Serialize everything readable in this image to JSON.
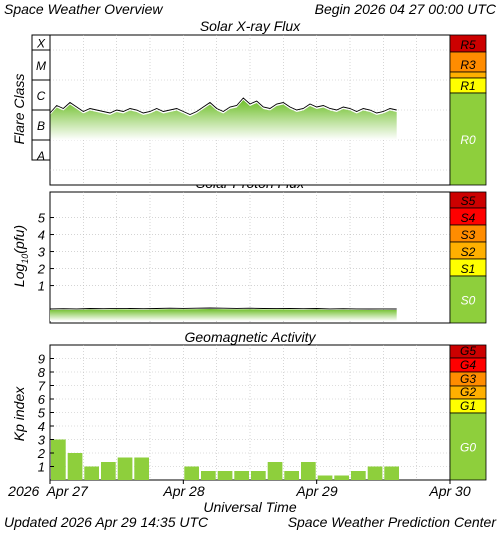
{
  "header": {
    "title": "Space Weather Overview",
    "begin": "Begin 2026 04 27 00:00 UTC"
  },
  "footer": {
    "updated": "Updated 2026 Apr 29 14:35 UTC",
    "center": "Space Weather Prediction Center"
  },
  "colors": {
    "scale_red_dark": "#cc0000",
    "scale_red": "#ff0000",
    "scale_orange": "#ff8c00",
    "scale_amber": "#ffb000",
    "scale_yellow": "#ffff00",
    "scale_green": "#8ecf3c",
    "data_green": "#8ecf3c",
    "grid": "#bbbbbb"
  },
  "chart_data": [
    {
      "id": "xray",
      "type": "area",
      "title": "Solar X-ray Flux",
      "ylabel": "Flare Class",
      "y_classes": [
        "X",
        "M",
        "C",
        "B",
        "A"
      ],
      "ylim": [
        -8.5,
        -3.5
      ],
      "scale_labels": [
        "R5",
        "R3",
        "R1",
        "R0"
      ],
      "time_range_days": [
        0,
        2.6
      ],
      "series_summary": "C-class level, ~-6.0 log W/m2 with peaks near -5.6",
      "x": [
        0.0,
        0.05,
        0.1,
        0.15,
        0.2,
        0.25,
        0.3,
        0.35,
        0.4,
        0.45,
        0.5,
        0.55,
        0.6,
        0.65,
        0.7,
        0.75,
        0.8,
        0.85,
        0.9,
        0.95,
        1.0,
        1.05,
        1.1,
        1.15,
        1.2,
        1.25,
        1.3,
        1.35,
        1.4,
        1.45,
        1.5,
        1.55,
        1.6,
        1.65,
        1.7,
        1.75,
        1.8,
        1.85,
        1.9,
        1.95,
        2.0,
        2.05,
        2.1,
        2.15,
        2.2,
        2.25,
        2.3,
        2.35,
        2.4,
        2.45,
        2.5,
        2.55,
        2.6
      ],
      "values": [
        -6.1,
        -5.85,
        -5.95,
        -5.75,
        -5.9,
        -6.05,
        -5.95,
        -6.0,
        -6.05,
        -6.1,
        -6.0,
        -6.05,
        -5.95,
        -6.0,
        -6.1,
        -6.05,
        -5.95,
        -6.05,
        -6.0,
        -5.95,
        -6.05,
        -6.15,
        -6.05,
        -5.9,
        -5.75,
        -5.95,
        -6.05,
        -5.9,
        -5.85,
        -5.6,
        -5.8,
        -5.7,
        -5.9,
        -5.95,
        -5.8,
        -5.75,
        -5.9,
        -6.0,
        -5.95,
        -5.8,
        -5.9,
        -5.85,
        -5.95,
        -6.0,
        -5.9,
        -5.95,
        -6.05,
        -5.95,
        -6.0,
        -6.1,
        -6.05,
        -5.95,
        -6.0
      ]
    },
    {
      "id": "proton",
      "type": "area",
      "title": "Solar Proton Flux",
      "ylabel": "Log10(pfu)",
      "yticks": [
        1,
        2,
        3,
        4,
        5
      ],
      "ylim": [
        -1.2,
        6.5
      ],
      "scale_labels": [
        "S5",
        "S4",
        "S3",
        "S2",
        "S1",
        "S0"
      ],
      "time_range_days": [
        0,
        2.6
      ],
      "series_summary": "background level near -0.35 log pfu",
      "x": [
        0.0,
        0.1,
        0.2,
        0.3,
        0.4,
        0.5,
        0.6,
        0.7,
        0.8,
        0.9,
        1.0,
        1.1,
        1.2,
        1.3,
        1.4,
        1.5,
        1.6,
        1.7,
        1.8,
        1.9,
        2.0,
        2.1,
        2.2,
        2.3,
        2.4,
        2.5,
        2.6
      ],
      "values": [
        -0.38,
        -0.36,
        -0.37,
        -0.35,
        -0.36,
        -0.34,
        -0.35,
        -0.36,
        -0.35,
        -0.33,
        -0.34,
        -0.33,
        -0.32,
        -0.33,
        -0.34,
        -0.33,
        -0.35,
        -0.34,
        -0.35,
        -0.36,
        -0.35,
        -0.37,
        -0.36,
        -0.37,
        -0.38,
        -0.37,
        -0.38
      ]
    },
    {
      "id": "kp",
      "type": "bar",
      "title": "Geomagnetic Activity",
      "ylabel": "Kp index",
      "yticks": [
        1,
        2,
        3,
        4,
        5,
        6,
        7,
        8,
        9
      ],
      "ylim": [
        0,
        10
      ],
      "scale_labels": [
        "G5",
        "G4",
        "G3",
        "G2",
        "G1",
        "G0"
      ],
      "bar_width_hours": 3,
      "x_hours": [
        0,
        3,
        6,
        9,
        12,
        15,
        24,
        27,
        30,
        33,
        36,
        39,
        42,
        45,
        48,
        51,
        54,
        57,
        60
      ],
      "values": [
        3.0,
        2.0,
        1.0,
        1.33,
        1.67,
        1.67,
        1.0,
        0.67,
        0.67,
        0.67,
        0.67,
        1.33,
        0.67,
        1.33,
        0.33,
        0.33,
        0.67,
        1.0,
        1.0
      ]
    }
  ],
  "x_axis": {
    "label": "Universal Time",
    "ticks": [
      "2026  Apr 27",
      "Apr 28",
      "Apr 29",
      "Apr 30"
    ],
    "tick_days": [
      0,
      1,
      2,
      3
    ],
    "range_days": [
      0,
      3
    ]
  }
}
